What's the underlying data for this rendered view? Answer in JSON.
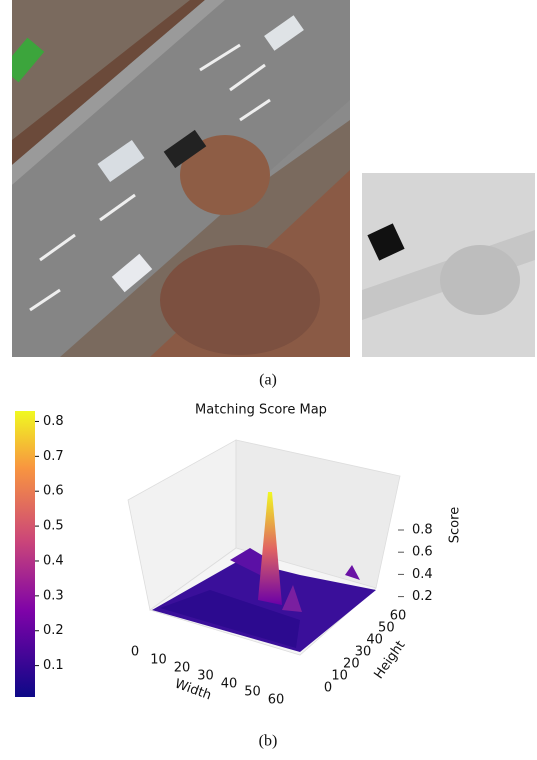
{
  "panel_a": {
    "caption": "(a)"
  },
  "panel_b": {
    "caption": "(b)",
    "title": "Matching Score Map",
    "colorbar": {
      "lim": [
        0.01,
        0.83
      ],
      "ticks": [
        0.1,
        0.2,
        0.3,
        0.4,
        0.5,
        0.6,
        0.7,
        0.8
      ]
    },
    "x_axis": {
      "label": "Width",
      "ticks": [
        0,
        10,
        20,
        30,
        40,
        50,
        60
      ]
    },
    "y_axis": {
      "label": "Height",
      "ticks": [
        0,
        10,
        20,
        30,
        40,
        50,
        60
      ]
    },
    "z_axis": {
      "label": "Score",
      "ticks": [
        0.2,
        0.4,
        0.6,
        0.8
      ]
    }
  }
}
